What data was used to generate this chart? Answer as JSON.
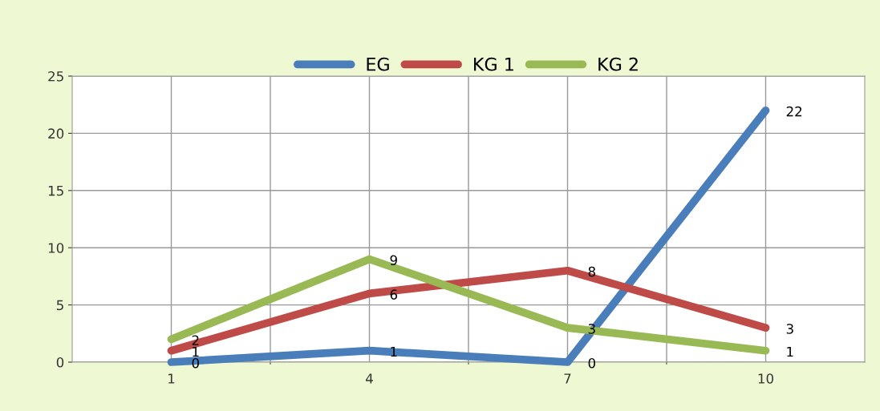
{
  "chart_data": {
    "type": "line",
    "categories": [
      "1",
      "4",
      "7",
      "10"
    ],
    "series": [
      {
        "name": "EG",
        "color": "#4a7ebb",
        "values": [
          0,
          1,
          0,
          22
        ]
      },
      {
        "name": "KG 1",
        "color": "#be4b48",
        "values": [
          1,
          6,
          8,
          3
        ]
      },
      {
        "name": "KG 2",
        "color": "#98b954",
        "values": [
          2,
          9,
          3,
          1
        ]
      }
    ],
    "ylim": [
      0,
      25
    ],
    "yticks": [
      0,
      5,
      10,
      15,
      20,
      25
    ],
    "grid": true,
    "legend": "top",
    "data_labels": true,
    "marker": "none",
    "line_style": "solid"
  }
}
